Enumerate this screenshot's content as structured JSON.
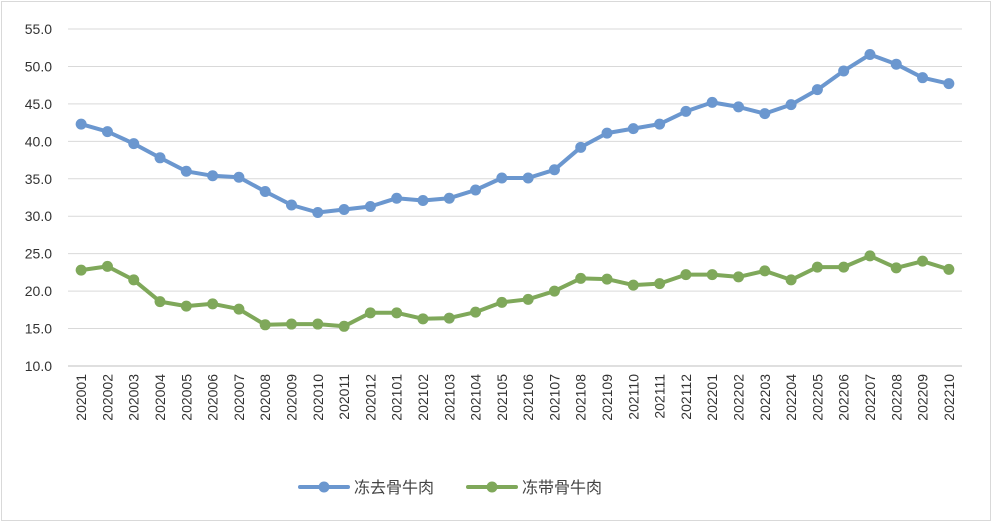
{
  "chart_data": {
    "type": "line",
    "title": "",
    "xlabel": "",
    "ylabel": "",
    "ylim": [
      10,
      55
    ],
    "ytick_step": 5,
    "grid": true,
    "legend_position": "bottom",
    "categories": [
      "202001",
      "202002",
      "202003",
      "202004",
      "202005",
      "202006",
      "202007",
      "202008",
      "202009",
      "202010",
      "202011",
      "202012",
      "202101",
      "202102",
      "202103",
      "202104",
      "202105",
      "202106",
      "202107",
      "202108",
      "202109",
      "202110",
      "202111",
      "202112",
      "202201",
      "202202",
      "202203",
      "202204",
      "202205",
      "202206",
      "202207",
      "202208",
      "202209",
      "202210"
    ],
    "yticks": [
      "10.0",
      "15.0",
      "20.0",
      "25.0",
      "30.0",
      "35.0",
      "40.0",
      "45.0",
      "50.0",
      "55.0"
    ],
    "series": [
      {
        "name": "冻去骨牛肉",
        "color": "#6b97cf",
        "values": [
          42.3,
          41.3,
          39.7,
          37.8,
          36.0,
          35.4,
          35.2,
          33.3,
          31.5,
          30.5,
          30.9,
          31.3,
          32.4,
          32.1,
          32.4,
          33.5,
          35.1,
          35.1,
          36.2,
          39.2,
          41.1,
          41.7,
          42.3,
          44.0,
          45.2,
          44.6,
          43.7,
          44.9,
          46.9,
          49.4,
          51.6,
          50.3,
          48.5,
          47.7
        ]
      },
      {
        "name": "冻带骨牛肉",
        "color": "#7fa85a",
        "values": [
          22.8,
          23.3,
          21.5,
          18.6,
          18.0,
          18.3,
          17.6,
          15.5,
          15.6,
          15.6,
          15.3,
          17.1,
          17.1,
          16.3,
          16.4,
          17.2,
          18.5,
          18.9,
          20.0,
          21.7,
          21.6,
          20.8,
          21.0,
          22.2,
          22.2,
          21.9,
          22.7,
          21.5,
          23.2,
          23.2,
          24.7,
          23.1,
          24.0,
          22.9
        ]
      }
    ]
  }
}
